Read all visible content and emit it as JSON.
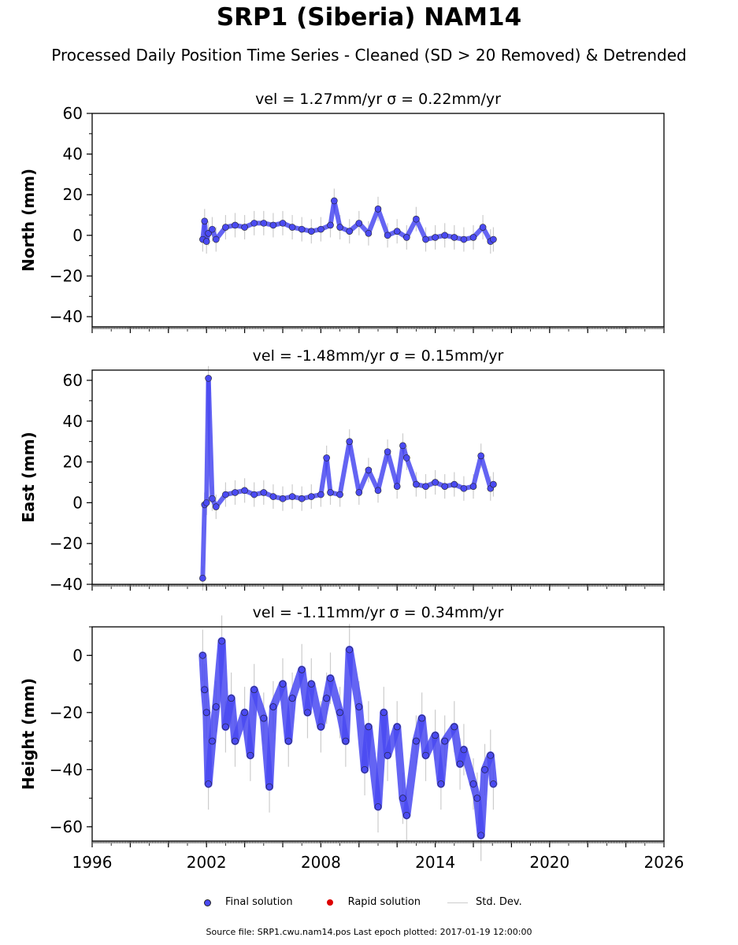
{
  "title": "SRP1 (Siberia) NAM14",
  "subtitle": "Processed Daily Position Time Series - Cleaned (SD > 20 Removed) & Detrended",
  "source": "Source file: SRP1.cwu.nam14.pos  Last epoch plotted: 2017-01-19 12:00:00",
  "legend": {
    "final": "Final solution",
    "rapid": "Rapid solution",
    "stddev": "Std. Dev."
  },
  "colors": {
    "final": "#4a4af2",
    "rapid": "#dd0000",
    "stddev": "#cccccc"
  },
  "chart_data": [
    {
      "type": "scatter",
      "title": "vel = 1.27mm/yr   σ = 0.22mm/yr",
      "ylabel": "North (mm)",
      "xlim": [
        1996,
        2026
      ],
      "ylim": [
        -45,
        60
      ],
      "yticks": [
        -40,
        -20,
        0,
        20,
        40,
        60
      ],
      "ytick_labels": [
        "−40",
        "−20",
        "0",
        "20",
        "40",
        "60"
      ],
      "series": [
        {
          "name": "Final solution",
          "x": [
            2001.8,
            2001.9,
            2002.0,
            2002.1,
            2002.3,
            2002.5,
            2003.0,
            2003.5,
            2004.0,
            2004.5,
            2005.0,
            2005.5,
            2006.0,
            2006.5,
            2007.0,
            2007.5,
            2008.0,
            2008.5,
            2008.7,
            2009.0,
            2009.5,
            2010.0,
            2010.5,
            2011.0,
            2011.5,
            2012.0,
            2012.5,
            2013.0,
            2013.5,
            2014.0,
            2014.5,
            2015.0,
            2015.5,
            2016.0,
            2016.5,
            2016.9,
            2017.05
          ],
          "y": [
            -2,
            7,
            -3,
            1,
            3,
            -2,
            4,
            5,
            4,
            6,
            6,
            5,
            6,
            4,
            3,
            2,
            3,
            5,
            17,
            4,
            2,
            6,
            1,
            13,
            0,
            2,
            -1,
            8,
            -2,
            -1,
            0,
            -1,
            -2,
            -1,
            4,
            -3,
            -2
          ]
        }
      ]
    },
    {
      "type": "scatter",
      "title": "vel = -1.48mm/yr   σ = 0.15mm/yr",
      "ylabel": "East (mm)",
      "xlim": [
        1996,
        2026
      ],
      "ylim": [
        -40,
        65
      ],
      "yticks": [
        -40,
        -20,
        0,
        20,
        40,
        60
      ],
      "ytick_labels": [
        "−40",
        "−20",
        "0",
        "20",
        "40",
        "60"
      ],
      "series": [
        {
          "name": "Final solution",
          "x": [
            2001.8,
            2001.9,
            2002.0,
            2002.1,
            2002.3,
            2002.5,
            2003.0,
            2003.5,
            2004.0,
            2004.5,
            2005.0,
            2005.5,
            2006.0,
            2006.5,
            2007.0,
            2007.5,
            2008.0,
            2008.3,
            2008.5,
            2009.0,
            2009.5,
            2010.0,
            2010.5,
            2011.0,
            2011.5,
            2012.0,
            2012.3,
            2012.5,
            2013.0,
            2013.5,
            2014.0,
            2014.5,
            2015.0,
            2015.5,
            2016.0,
            2016.4,
            2016.9,
            2017.05
          ],
          "y": [
            -37,
            -1,
            0,
            61,
            2,
            -2,
            4,
            5,
            6,
            4,
            5,
            3,
            2,
            3,
            2,
            3,
            4,
            22,
            5,
            4,
            30,
            5,
            16,
            6,
            25,
            8,
            28,
            22,
            9,
            8,
            10,
            8,
            9,
            7,
            8,
            23,
            7,
            9
          ]
        }
      ]
    },
    {
      "type": "scatter",
      "title": "vel = -1.11mm/yr   σ = 0.34mm/yr",
      "ylabel": "Height (mm)",
      "xlim": [
        1996,
        2026
      ],
      "ylim": [
        -65,
        10
      ],
      "yticks": [
        -60,
        -40,
        -20,
        0
      ],
      "ytick_labels": [
        "−60",
        "−40",
        "−20",
        "0"
      ],
      "xticks": [
        1996,
        2002,
        2008,
        2014,
        2020,
        2026
      ],
      "xtick_labels": [
        "1996",
        "2002",
        "2008",
        "2014",
        "2020",
        "2026"
      ],
      "series": [
        {
          "name": "Final solution",
          "x": [
            2001.8,
            2001.9,
            2002.0,
            2002.1,
            2002.3,
            2002.5,
            2002.8,
            2003.0,
            2003.3,
            2003.5,
            2004.0,
            2004.3,
            2004.5,
            2005.0,
            2005.3,
            2005.5,
            2006.0,
            2006.3,
            2006.5,
            2007.0,
            2007.3,
            2007.5,
            2008.0,
            2008.3,
            2008.5,
            2009.0,
            2009.3,
            2009.5,
            2010.0,
            2010.3,
            2010.5,
            2011.0,
            2011.3,
            2011.5,
            2012.0,
            2012.3,
            2012.5,
            2013.0,
            2013.3,
            2013.5,
            2014.0,
            2014.3,
            2014.5,
            2015.0,
            2015.3,
            2015.5,
            2016.0,
            2016.2,
            2016.4,
            2016.6,
            2016.9,
            2017.05
          ],
          "y": [
            0,
            -12,
            -20,
            -45,
            -30,
            -18,
            5,
            -25,
            -15,
            -30,
            -20,
            -35,
            -12,
            -22,
            -46,
            -18,
            -10,
            -30,
            -15,
            -5,
            -20,
            -10,
            -25,
            -15,
            -8,
            -20,
            -30,
            2,
            -18,
            -40,
            -25,
            -53,
            -20,
            -35,
            -25,
            -50,
            -56,
            -30,
            -22,
            -35,
            -28,
            -45,
            -30,
            -25,
            -38,
            -33,
            -45,
            -50,
            -63,
            -40,
            -35,
            -45
          ]
        }
      ]
    }
  ]
}
